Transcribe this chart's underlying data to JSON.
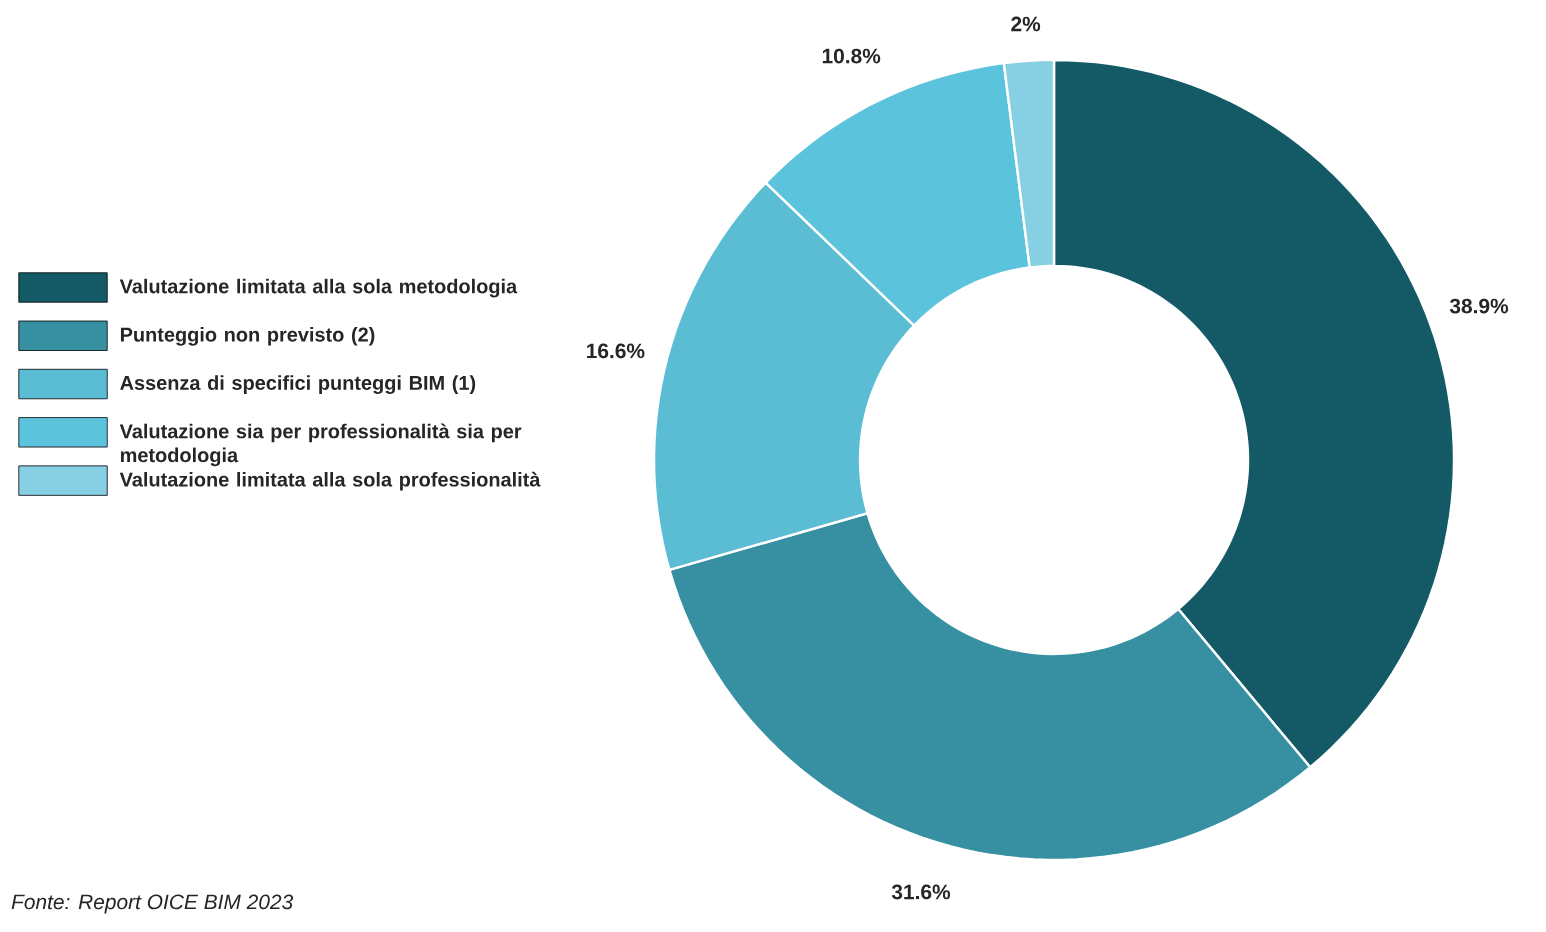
{
  "chart_data": {
    "type": "donut",
    "categories": [
      "Valutazione limitata alla sola metodologia",
      "Punteggio non previsto (2)",
      "Assenza di specifici punteggi BIM (1)",
      "Valutazione sia per professionalità sia per metodologia",
      "Valutazione limitata alla sola professionalità"
    ],
    "values": [
      38.9,
      31.6,
      16.6,
      10.8,
      2
    ],
    "value_labels": [
      "38.9%",
      "31.6%",
      "16.6%",
      "10.8%",
      "2%"
    ],
    "colors": [
      "#135a66",
      "#3690a2",
      "#5bbdd4",
      "#5bc3dc",
      "#87d0e3"
    ],
    "legend": "left",
    "annotations": [
      "Fonte: Report OICE BIM 2023"
    ]
  }
}
